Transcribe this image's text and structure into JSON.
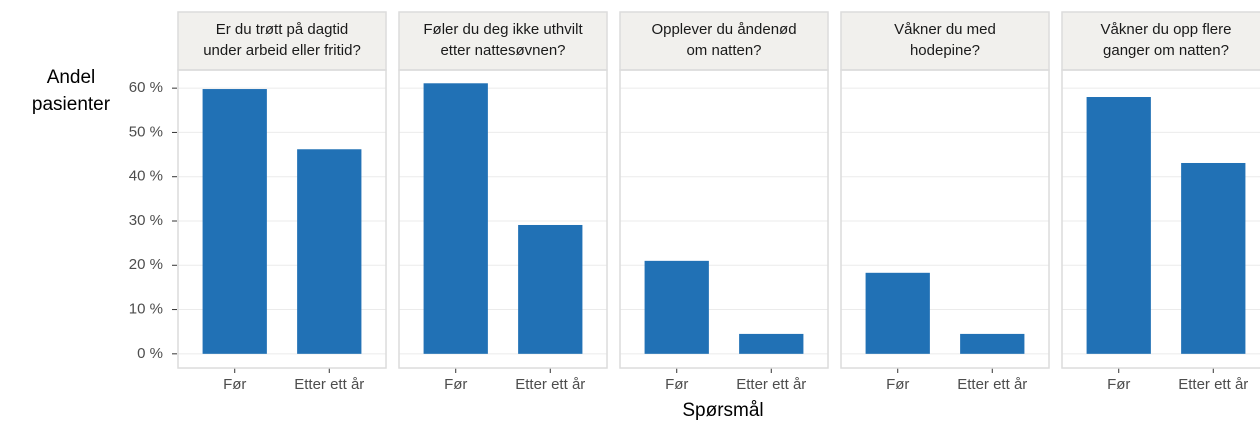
{
  "chart_data": {
    "type": "bar",
    "ylabel": [
      "Andel",
      "pasienter"
    ],
    "xlabel": "Spørsmål",
    "categories": [
      "Før",
      "Etter ett år"
    ],
    "color": "#2171b5",
    "ylim": [
      -3.2,
      64.1
    ],
    "yticks": [
      {
        "value": 0,
        "label": "0 %"
      },
      {
        "value": 10,
        "label": "10 %"
      },
      {
        "value": 20,
        "label": "20 %"
      },
      {
        "value": 30,
        "label": "30 %"
      },
      {
        "value": 40,
        "label": "40 %"
      },
      {
        "value": 50,
        "label": "50 %"
      },
      {
        "value": 60,
        "label": "60 %"
      }
    ],
    "grid": true,
    "facets": [
      {
        "title": [
          "Er du trøtt på dagtid",
          "under arbeid eller fritid?"
        ],
        "values": [
          59.8,
          46.2
        ]
      },
      {
        "title": [
          "Føler du deg ikke uthvilt",
          "etter nattesøvnen?"
        ],
        "values": [
          61.1,
          29.1
        ]
      },
      {
        "title": [
          "Opplever du åndenød",
          "om natten?"
        ],
        "values": [
          21.0,
          4.5
        ]
      },
      {
        "title": [
          "Våkner du med",
          "hodepine?"
        ],
        "values": [
          18.3,
          4.5
        ]
      },
      {
        "title": [
          "Våkner du opp flere",
          "ganger om natten?"
        ],
        "values": [
          58.0,
          43.1
        ]
      }
    ]
  }
}
